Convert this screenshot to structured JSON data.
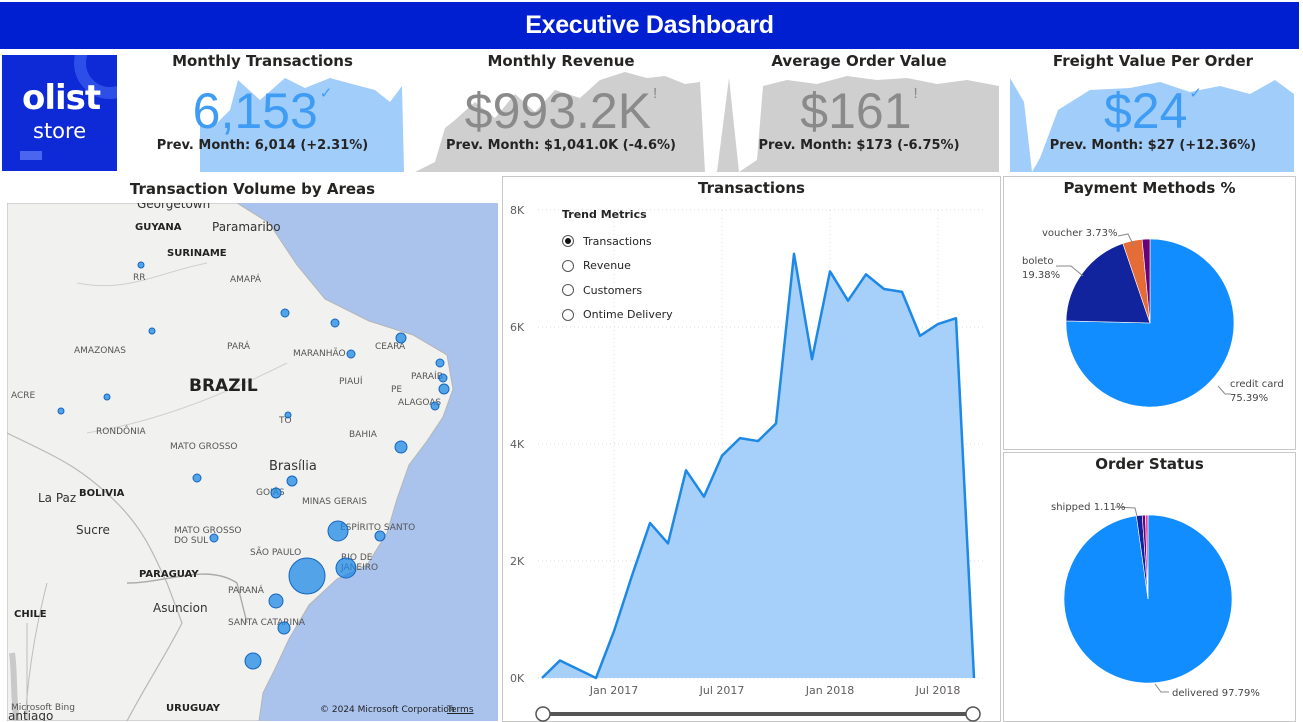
{
  "header": {
    "title": "Executive Dashboard"
  },
  "logo": {
    "word": "olist",
    "sub": "store"
  },
  "kpis": [
    {
      "title": "Monthly Transactions",
      "value": "6,153",
      "status": "up",
      "mark": "✓",
      "prev": "Prev. Month: 6,014 (+2.31%)",
      "color": "#3f9cf4",
      "spark_color": "#a0cdfa"
    },
    {
      "title": "Monthly Revenue",
      "value": "$993.2K",
      "status": "down",
      "mark": "!",
      "prev": "Prev. Month: $1,041.0K (-4.6%)",
      "color": "#8a8a8a",
      "spark_color": "#cfcfcf"
    },
    {
      "title": "Average Order Value",
      "value": "$161",
      "status": "down",
      "mark": "!",
      "prev": "Prev. Month: $173 (-6.75%)",
      "color": "#8a8a8a",
      "spark_color": "#cfcfcf"
    },
    {
      "title": "Freight Value Per Order",
      "value": "$24",
      "status": "up",
      "mark": "✓",
      "prev": "Prev. Month: $27 (+12.36%)",
      "color": "#3f9cf4",
      "spark_color": "#a0cdfa"
    }
  ],
  "map_panel": {
    "title": "Transaction Volume by Areas",
    "countries": [
      "GUYANA",
      "SURINAME",
      "BRAZIL",
      "BOLIVIA",
      "PARAGUAY",
      "CHILE",
      "URUGUAY"
    ],
    "states": [
      "RR",
      "AMAPÁ",
      "AMAZONAS",
      "PARÁ",
      "MARANHÃO",
      "CEARÁ",
      "PIAUÍ",
      "PE",
      "PARAÍB",
      "ALAGOAS",
      "ACRE",
      "RONDÔNIA",
      "TO",
      "BAHIA",
      "MATO GROSSO",
      "GOIÁS",
      "MINAS GERAIS",
      "MATO GROSSO DO SUL",
      "ESPÍRITO SANTO",
      "SÃO PAULO",
      "RIO DE JANEIRO",
      "PARANÁ",
      "SANTA CATARINA"
    ],
    "cities": [
      "Georgetown",
      "Paramaribo",
      "Brasília",
      "La Paz",
      "Sucre",
      "Asuncion",
      "antiago"
    ],
    "attribution": "© 2024 Microsoft Corporation",
    "terms": "Terms",
    "bing": "Microsoft Bing"
  },
  "transactions_panel": {
    "title": "Transactions",
    "legend_title": "Trend Metrics",
    "metrics": [
      "Transactions",
      "Revenue",
      "Customers",
      "Ontime Delivery"
    ],
    "selected_metric": "Transactions",
    "chart_data": {
      "type": "area",
      "x": [
        "2016-09",
        "2016-10",
        "2016-12",
        "2017-01",
        "2017-02",
        "2017-03",
        "2017-04",
        "2017-05",
        "2017-06",
        "2017-07",
        "2017-08",
        "2017-09",
        "2017-10",
        "2017-11",
        "2017-12",
        "2018-01",
        "2018-02",
        "2018-03",
        "2018-04",
        "2018-05",
        "2018-06",
        "2018-07",
        "2018-08",
        "2018-09"
      ],
      "values": [
        0,
        300,
        0,
        800,
        1750,
        2650,
        2300,
        3550,
        3100,
        3800,
        4100,
        4050,
        4350,
        7250,
        5450,
        6950,
        6450,
        6900,
        6650,
        6600,
        5850,
        6050,
        6150,
        0
      ],
      "yticks": [
        "0K",
        "2K",
        "4K",
        "6K",
        "8K"
      ],
      "ylim": [
        0,
        8000
      ],
      "xticks": [
        "Jan 2017",
        "Jul 2017",
        "Jan 2018",
        "Jul 2018"
      ],
      "line_color": "#1e88e5",
      "fill_color": "#a6d0fa"
    }
  },
  "payment_panel": {
    "title": "Payment Methods %",
    "chart_data": {
      "type": "pie",
      "slices": [
        {
          "label": "credit card",
          "value": 75.39,
          "pct": "75.39%",
          "color": "#118dff"
        },
        {
          "label": "boleto",
          "value": 19.38,
          "pct": "19.38%",
          "color": "#12239e"
        },
        {
          "label": "voucher",
          "value": 3.73,
          "pct": "3.73%",
          "color": "#e66c37"
        },
        {
          "label": "",
          "value": 1.5,
          "pct": "",
          "color": "#6b007b"
        }
      ]
    }
  },
  "status_panel": {
    "title": "Order Status",
    "chart_data": {
      "type": "pie",
      "slices": [
        {
          "label": "delivered",
          "value": 97.79,
          "pct": "97.79%",
          "color": "#118dff"
        },
        {
          "label": "shipped",
          "value": 1.11,
          "pct": "1.11%",
          "color": "#12239e"
        },
        {
          "label": "",
          "value": 0.6,
          "pct": "",
          "color": "#6b007b"
        },
        {
          "label": "",
          "value": 0.5,
          "pct": "",
          "color": "#e044a7"
        }
      ]
    }
  }
}
